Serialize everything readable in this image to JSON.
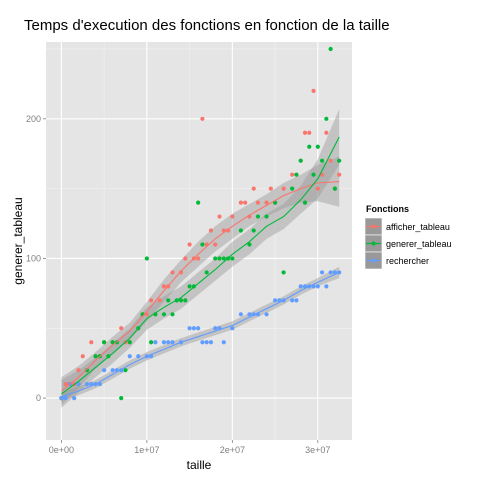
{
  "chart_data": {
    "type": "scatter",
    "title": "Temps d'execution des fonctions en fonction de la taille",
    "xlabel": "taille",
    "ylabel": "generer_tableau",
    "xlim": [
      -1800000,
      34000000
    ],
    "ylim": [
      -30,
      255
    ],
    "x_ticks": [
      {
        "value": 0,
        "label": "0e+00"
      },
      {
        "value": 10000000,
        "label": "1e+07"
      },
      {
        "value": 20000000,
        "label": "2e+07"
      },
      {
        "value": 30000000,
        "label": "3e+07"
      }
    ],
    "y_ticks": [
      {
        "value": 0,
        "label": "0"
      },
      {
        "value": 100,
        "label": "100"
      },
      {
        "value": 200,
        "label": "200"
      }
    ],
    "grid": true,
    "legend": {
      "title": "Fonctions",
      "position": "right",
      "entries": [
        "afficher_tableau",
        "generer_tableau",
        "rechercher"
      ]
    },
    "series": [
      {
        "name": "afficher_tableau",
        "color": "#F8766D",
        "points": [
          [
            0,
            0
          ],
          [
            500000,
            10
          ],
          [
            800000,
            10
          ],
          [
            1500000,
            10
          ],
          [
            2000000,
            20
          ],
          [
            2500000,
            30
          ],
          [
            3000000,
            20
          ],
          [
            3500000,
            40
          ],
          [
            4000000,
            30
          ],
          [
            4500000,
            30
          ],
          [
            5000000,
            40
          ],
          [
            5500000,
            30
          ],
          [
            6000000,
            40
          ],
          [
            7000000,
            50
          ],
          [
            7500000,
            40
          ],
          [
            8000000,
            40
          ],
          [
            9000000,
            50
          ],
          [
            9500000,
            60
          ],
          [
            10000000,
            60
          ],
          [
            10500000,
            70
          ],
          [
            11000000,
            60
          ],
          [
            11500000,
            70
          ],
          [
            12000000,
            80
          ],
          [
            12500000,
            80
          ],
          [
            13000000,
            90
          ],
          [
            14000000,
            90
          ],
          [
            14500000,
            100
          ],
          [
            15000000,
            110
          ],
          [
            15500000,
            100
          ],
          [
            16000000,
            100
          ],
          [
            16500000,
            200
          ],
          [
            17000000,
            110
          ],
          [
            17500000,
            120
          ],
          [
            18000000,
            110
          ],
          [
            18500000,
            130
          ],
          [
            19000000,
            120
          ],
          [
            19500000,
            120
          ],
          [
            20000000,
            130
          ],
          [
            21000000,
            140
          ],
          [
            21500000,
            140
          ],
          [
            22000000,
            130
          ],
          [
            22500000,
            150
          ],
          [
            23000000,
            140
          ],
          [
            24000000,
            140
          ],
          [
            24500000,
            150
          ],
          [
            25000000,
            140
          ],
          [
            26000000,
            150
          ],
          [
            27000000,
            160
          ],
          [
            27500000,
            160
          ],
          [
            28000000,
            170
          ],
          [
            28500000,
            190
          ],
          [
            29000000,
            190
          ],
          [
            29500000,
            220
          ],
          [
            30000000,
            150
          ],
          [
            30500000,
            160
          ],
          [
            31000000,
            190
          ],
          [
            31500000,
            170
          ],
          [
            32000000,
            150
          ],
          [
            32500000,
            160
          ]
        ],
        "smooth": [
          [
            0,
            5
          ],
          [
            2000000,
            15
          ],
          [
            4000000,
            27
          ],
          [
            6000000,
            38
          ],
          [
            8000000,
            48
          ],
          [
            10000000,
            62
          ],
          [
            12000000,
            77
          ],
          [
            14000000,
            91
          ],
          [
            16000000,
            103
          ],
          [
            18000000,
            114
          ],
          [
            20000000,
            123
          ],
          [
            22000000,
            131
          ],
          [
            24000000,
            138
          ],
          [
            26000000,
            145
          ],
          [
            28000000,
            150
          ],
          [
            30000000,
            154
          ],
          [
            32500000,
            155
          ]
        ],
        "band_half_width": [
          10,
          8,
          6,
          6,
          6,
          7,
          8,
          8,
          9,
          9,
          9,
          8,
          8,
          9,
          10,
          13,
          18
        ]
      },
      {
        "name": "generer_tableau",
        "color": "#00BA38",
        "points": [
          [
            0,
            0
          ],
          [
            1000000,
            10
          ],
          [
            2000000,
            10
          ],
          [
            3000000,
            20
          ],
          [
            4000000,
            30
          ],
          [
            4500000,
            30
          ],
          [
            5000000,
            40
          ],
          [
            5500000,
            30
          ],
          [
            6000000,
            40
          ],
          [
            6500000,
            40
          ],
          [
            7000000,
            0
          ],
          [
            7500000,
            20
          ],
          [
            8000000,
            40
          ],
          [
            9000000,
            50
          ],
          [
            9500000,
            60
          ],
          [
            10000000,
            100
          ],
          [
            10500000,
            40
          ],
          [
            11000000,
            60
          ],
          [
            12000000,
            60
          ],
          [
            12500000,
            70
          ],
          [
            13000000,
            60
          ],
          [
            13500000,
            70
          ],
          [
            14000000,
            70
          ],
          [
            14500000,
            70
          ],
          [
            15000000,
            80
          ],
          [
            15500000,
            80
          ],
          [
            16000000,
            140
          ],
          [
            16500000,
            110
          ],
          [
            17000000,
            90
          ],
          [
            18000000,
            100
          ],
          [
            18500000,
            100
          ],
          [
            19000000,
            100
          ],
          [
            19500000,
            100
          ],
          [
            20000000,
            100
          ],
          [
            21000000,
            120
          ],
          [
            22000000,
            110
          ],
          [
            22500000,
            120
          ],
          [
            23000000,
            130
          ],
          [
            24000000,
            130
          ],
          [
            25000000,
            140
          ],
          [
            26000000,
            90
          ],
          [
            27000000,
            150
          ],
          [
            27500000,
            160
          ],
          [
            28000000,
            170
          ],
          [
            28500000,
            140
          ],
          [
            29000000,
            180
          ],
          [
            29500000,
            160
          ],
          [
            30000000,
            180
          ],
          [
            30500000,
            170
          ],
          [
            31000000,
            200
          ],
          [
            31500000,
            250
          ],
          [
            32000000,
            150
          ],
          [
            32500000,
            170
          ]
        ],
        "smooth": [
          [
            0,
            3
          ],
          [
            2000000,
            12
          ],
          [
            4000000,
            22
          ],
          [
            6000000,
            32
          ],
          [
            8000000,
            43
          ],
          [
            10000000,
            57
          ],
          [
            12000000,
            65
          ],
          [
            14000000,
            72
          ],
          [
            16000000,
            82
          ],
          [
            18000000,
            92
          ],
          [
            20000000,
            103
          ],
          [
            22000000,
            112
          ],
          [
            24000000,
            123
          ],
          [
            26000000,
            130
          ],
          [
            28000000,
            142
          ],
          [
            30000000,
            157
          ],
          [
            32500000,
            187
          ]
        ],
        "band_half_width": [
          10,
          8,
          7,
          7,
          7,
          8,
          8,
          8,
          8,
          8,
          9,
          9,
          9,
          9,
          10,
          14,
          20
        ]
      },
      {
        "name": "rechercher",
        "color": "#619CFF",
        "points": [
          [
            0,
            0
          ],
          [
            500000,
            0
          ],
          [
            1000000,
            10
          ],
          [
            1500000,
            0
          ],
          [
            2000000,
            10
          ],
          [
            3000000,
            10
          ],
          [
            3500000,
            10
          ],
          [
            4000000,
            10
          ],
          [
            4500000,
            10
          ],
          [
            5000000,
            20
          ],
          [
            6000000,
            20
          ],
          [
            6500000,
            20
          ],
          [
            7000000,
            20
          ],
          [
            8000000,
            30
          ],
          [
            9000000,
            30
          ],
          [
            10000000,
            30
          ],
          [
            10500000,
            30
          ],
          [
            11000000,
            40
          ],
          [
            12000000,
            40
          ],
          [
            12500000,
            40
          ],
          [
            13000000,
            40
          ],
          [
            14000000,
            40
          ],
          [
            15000000,
            50
          ],
          [
            15500000,
            50
          ],
          [
            16000000,
            50
          ],
          [
            16500000,
            40
          ],
          [
            17000000,
            40
          ],
          [
            17500000,
            40
          ],
          [
            18000000,
            50
          ],
          [
            18500000,
            50
          ],
          [
            19000000,
            40
          ],
          [
            20000000,
            50
          ],
          [
            21000000,
            60
          ],
          [
            22000000,
            60
          ],
          [
            22500000,
            60
          ],
          [
            23000000,
            60
          ],
          [
            24000000,
            60
          ],
          [
            25000000,
            70
          ],
          [
            25500000,
            70
          ],
          [
            26000000,
            70
          ],
          [
            27000000,
            70
          ],
          [
            27500000,
            70
          ],
          [
            28000000,
            80
          ],
          [
            28500000,
            80
          ],
          [
            29000000,
            80
          ],
          [
            29500000,
            80
          ],
          [
            30000000,
            80
          ],
          [
            30500000,
            90
          ],
          [
            31000000,
            80
          ],
          [
            31500000,
            90
          ],
          [
            32000000,
            90
          ],
          [
            32500000,
            90
          ]
        ],
        "smooth": [
          [
            0,
            1
          ],
          [
            2000000,
            5
          ],
          [
            4000000,
            10
          ],
          [
            6000000,
            17
          ],
          [
            8000000,
            24
          ],
          [
            10000000,
            30
          ],
          [
            12000000,
            35
          ],
          [
            14000000,
            40
          ],
          [
            16000000,
            44
          ],
          [
            18000000,
            48
          ],
          [
            20000000,
            52
          ],
          [
            22000000,
            58
          ],
          [
            24000000,
            64
          ],
          [
            26000000,
            70
          ],
          [
            28000000,
            77
          ],
          [
            30000000,
            83
          ],
          [
            32500000,
            90
          ]
        ],
        "band_half_width": [
          3,
          3,
          3,
          3,
          3,
          3,
          3,
          3,
          3,
          3,
          3,
          3,
          3,
          3,
          3,
          3,
          4
        ]
      }
    ]
  }
}
